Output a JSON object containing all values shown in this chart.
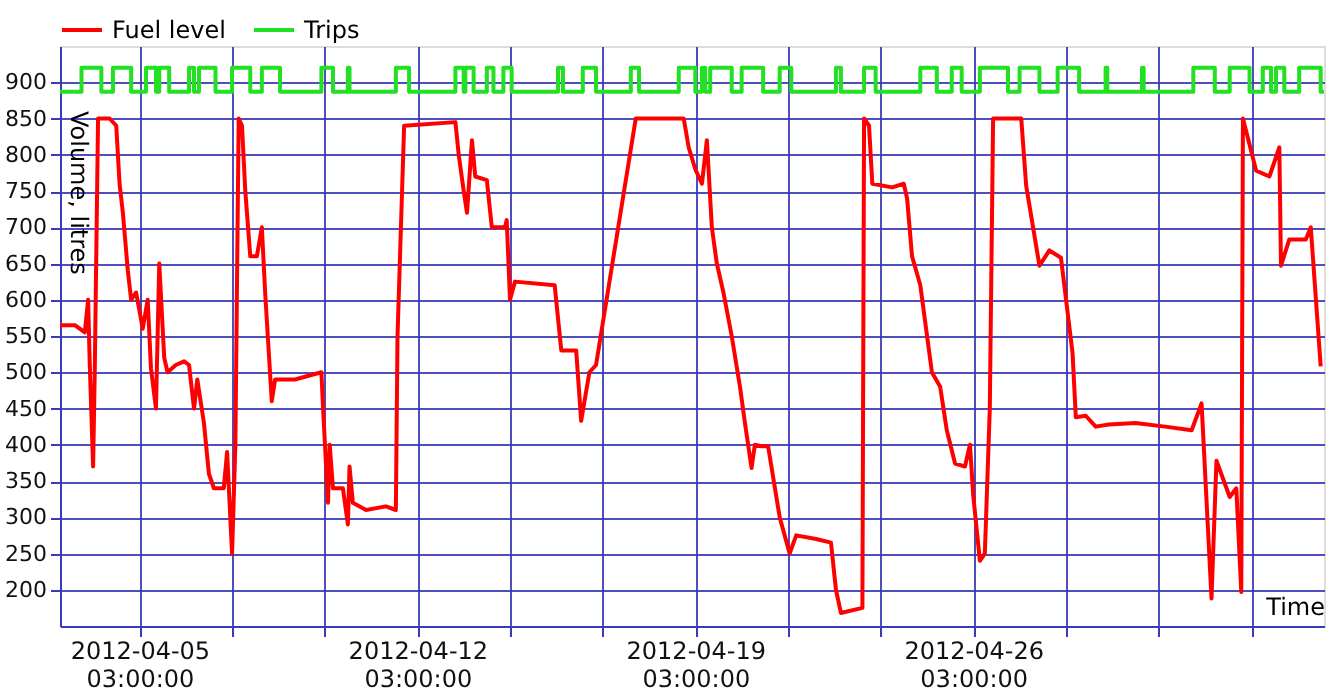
{
  "chart_data": {
    "type": "line",
    "xlabel": "Time",
    "ylabel": "Volume, litres",
    "legend": "top",
    "grid": true,
    "xlim": [
      "2012-04-03T03:00",
      "2012-05-04T23:00"
    ],
    "ylim": [
      150,
      950
    ],
    "yticks": [
      200,
      250,
      300,
      350,
      400,
      450,
      500,
      550,
      600,
      650,
      700,
      750,
      800,
      850,
      900
    ],
    "xticks": [
      {
        "value": "2012-04-05T03:00",
        "label": "2012-04-05 03:00:00"
      },
      {
        "value": "2012-04-07T11:00",
        "label": null
      },
      {
        "value": "2012-04-09T19:00",
        "label": null
      },
      {
        "value": "2012-04-12T03:00",
        "label": "2012-04-12 03:00:00"
      },
      {
        "value": "2012-04-14T11:00",
        "label": null
      },
      {
        "value": "2012-04-16T19:00",
        "label": null
      },
      {
        "value": "2012-04-19T03:00",
        "label": "2012-04-19 03:00:00"
      },
      {
        "value": "2012-04-21T11:00",
        "label": null
      },
      {
        "value": "2012-04-23T19:00",
        "label": null
      },
      {
        "value": "2012-04-26T03:00",
        "label": "2012-04-26 03:00:00"
      },
      {
        "value": "2012-04-28T11:00",
        "label": null
      },
      {
        "value": "2012-04-30T19:00",
        "label": null
      },
      {
        "value": "2012-05-03T03:00",
        "label": null
      }
    ],
    "series": [
      {
        "name": "Fuel level",
        "color": "#ff0000",
        "type": "line",
        "x": [
          "2012-04-03T03:00",
          "2012-04-03T12:00",
          "2012-04-03T18:00",
          "2012-04-03T20:00",
          "2012-04-03T21:00",
          "2012-04-03T23:00",
          "2012-04-04T00:00",
          "2012-04-04T02:00",
          "2012-04-04T09:00",
          "2012-04-04T13:00",
          "2012-04-04T15:00",
          "2012-04-04T17:00",
          "2012-04-04T20:00",
          "2012-04-04T22:00",
          "2012-04-05T01:00",
          "2012-04-05T05:00",
          "2012-04-05T08:00",
          "2012-04-05T10:00",
          "2012-04-05T13:00",
          "2012-04-05T15:00",
          "2012-04-05T18:00",
          "2012-04-05T20:00",
          "2012-04-06T01:00",
          "2012-04-06T06:00",
          "2012-04-06T09:00",
          "2012-04-06T12:00",
          "2012-04-06T14:00",
          "2012-04-06T18:00",
          "2012-04-06T21:00",
          "2012-04-07T00:00",
          "2012-04-07T06:00",
          "2012-04-07T08:00",
          "2012-04-07T11:00",
          "2012-04-07T13:00",
          "2012-04-07T15:00",
          "2012-04-07T17:00",
          "2012-04-07T19:00",
          "2012-04-07T22:00",
          "2012-04-08T02:00",
          "2012-04-08T05:00",
          "2012-04-08T07:00",
          "2012-04-08T11:00",
          "2012-04-08T13:00",
          "2012-04-09T01:00",
          "2012-04-09T17:00",
          "2012-04-09T18:00",
          "2012-04-09T21:00",
          "2012-04-09T22:00",
          "2012-04-10T00:00",
          "2012-04-10T06:00",
          "2012-04-10T09:00",
          "2012-04-10T10:00",
          "2012-04-10T12:00",
          "2012-04-10T20:00",
          "2012-04-11T08:00",
          "2012-04-11T14:00",
          "2012-04-11T15:00",
          "2012-04-11T19:00",
          "2012-04-13T02:00",
          "2012-04-13T04:00",
          "2012-04-13T07:00",
          "2012-04-13T09:00",
          "2012-04-13T12:00",
          "2012-04-13T14:00",
          "2012-04-13T21:00",
          "2012-04-14T00:00",
          "2012-04-14T08:00",
          "2012-04-14T09:00",
          "2012-04-14T11:00",
          "2012-04-14T14:00",
          "2012-04-15T14:00",
          "2012-04-15T18:00",
          "2012-04-16T03:00",
          "2012-04-16T06:00",
          "2012-04-16T11:00",
          "2012-04-16T15:00",
          "2012-04-17T15:00",
          "2012-04-18T15:00",
          "2012-04-18T20:00",
          "2012-04-18T23:00",
          "2012-04-19T03:00",
          "2012-04-19T07:00",
          "2012-04-19T10:00",
          "2012-04-19T13:00",
          "2012-04-19T16:00",
          "2012-04-19T20:00",
          "2012-04-20T01:00",
          "2012-04-20T06:00",
          "2012-04-20T09:00",
          "2012-04-20T13:00",
          "2012-04-20T15:00",
          "2012-04-20T19:00",
          "2012-04-20T23:00",
          "2012-04-21T06:00",
          "2012-04-21T12:00",
          "2012-04-21T16:00",
          "2012-04-22T04:00",
          "2012-04-22T13:00",
          "2012-04-22T16:00",
          "2012-04-22T19:00",
          "2012-04-23T08:00",
          "2012-04-23T09:00",
          "2012-04-23T12:00",
          "2012-04-23T14:00",
          "2012-04-24T02:00",
          "2012-04-24T09:00",
          "2012-04-24T11:00",
          "2012-04-24T14:00",
          "2012-04-24T19:00",
          "2012-04-25T02:00",
          "2012-04-25T07:00",
          "2012-04-25T11:00",
          "2012-04-25T16:00",
          "2012-04-25T22:00",
          "2012-04-26T01:00",
          "2012-04-26T03:00",
          "2012-04-26T07:00",
          "2012-04-26T10:00",
          "2012-04-26T13:00",
          "2012-04-26T15:00",
          "2012-04-27T08:00",
          "2012-04-27T11:00",
          "2012-04-27T19:00",
          "2012-04-28T01:00",
          "2012-04-28T08:00",
          "2012-04-28T15:00",
          "2012-04-28T17:00",
          "2012-04-28T23:00",
          "2012-04-29T05:00",
          "2012-04-29T13:00",
          "2012-04-30T05:00",
          "2012-04-30T23:00",
          "2012-05-01T15:00",
          "2012-05-01T21:00",
          "2012-05-02T03:00",
          "2012-05-02T06:00",
          "2012-05-02T14:00",
          "2012-05-02T18:00",
          "2012-05-02T21:00",
          "2012-05-02T22:00",
          "2012-05-03T06:00",
          "2012-05-03T14:00",
          "2012-05-03T20:00",
          "2012-05-03T21:00",
          "2012-05-04T02:00",
          "2012-05-04T12:00",
          "2012-05-04T15:00",
          "2012-05-04T21:00"
        ],
        "values": [
          565,
          565,
          555,
          600,
          510,
          370,
          500,
          850,
          850,
          840,
          760,
          720,
          640,
          600,
          610,
          560,
          600,
          505,
          450,
          650,
          520,
          500,
          510,
          515,
          510,
          450,
          490,
          430,
          360,
          340,
          340,
          390,
          250,
          400,
          850,
          840,
          750,
          660,
          660,
          700,
          610,
          460,
          490,
          490,
          500,
          450,
          320,
          400,
          340,
          340,
          290,
          370,
          320,
          310,
          315,
          310,
          550,
          840,
          845,
          800,
          750,
          720,
          820,
          770,
          765,
          700,
          700,
          710,
          600,
          625,
          620,
          530,
          530,
          433,
          500,
          510,
          850,
          850,
          850,
          810,
          780,
          760,
          820,
          700,
          650,
          610,
          550,
          480,
          430,
          368,
          400,
          398,
          398,
          300,
          250,
          275,
          270,
          265,
          200,
          168,
          175,
          850,
          840,
          760,
          755,
          760,
          740,
          660,
          620,
          500,
          480,
          420,
          374,
          370,
          400,
          330,
          240,
          250,
          450,
          850,
          850,
          757,
          647,
          668,
          658,
          527,
          438,
          440,
          425,
          428,
          430,
          425,
          420,
          457,
          188,
          378,
          328,
          340,
          197,
          850,
          778,
          770,
          810,
          647,
          683,
          683,
          700,
          508
        ]
      },
      {
        "name": "Trips",
        "color": "#22e022",
        "type": "step",
        "x": [
          "2012-04-03T03:00",
          "2012-04-03T16:00",
          "2012-04-04T04:00",
          "2012-04-04T11:00",
          "2012-04-04T22:00",
          "2012-04-05T07:00",
          "2012-04-05T13:00",
          "2012-04-05T15:00",
          "2012-04-05T21:00",
          "2012-04-06T09:00",
          "2012-04-06T12:00",
          "2012-04-06T15:00",
          "2012-04-07T01:00",
          "2012-04-07T11:00",
          "2012-04-07T22:00",
          "2012-04-08T05:00",
          "2012-04-08T16:00",
          "2012-04-09T17:00",
          "2012-04-10T00:00",
          "2012-04-10T09:00",
          "2012-04-10T10:00",
          "2012-04-11T14:00",
          "2012-04-11T22:00",
          "2012-04-13T02:00",
          "2012-04-13T07:00",
          "2012-04-13T08:00",
          "2012-04-13T13:00",
          "2012-04-13T21:00",
          "2012-04-14T01:00",
          "2012-04-14T07:00",
          "2012-04-14T12:00",
          "2012-04-15T16:00",
          "2012-04-15T19:00",
          "2012-04-16T07:00",
          "2012-04-16T15:00",
          "2012-04-17T12:00",
          "2012-04-17T17:00",
          "2012-04-18T17:00",
          "2012-04-19T03:00",
          "2012-04-19T07:00",
          "2012-04-19T09:00",
          "2012-04-19T12:00",
          "2012-04-20T01:00",
          "2012-04-20T07:00",
          "2012-04-20T20:00",
          "2012-04-21T06:00",
          "2012-04-21T13:00",
          "2012-04-22T16:00",
          "2012-04-22T19:00",
          "2012-04-23T09:00",
          "2012-04-23T16:00",
          "2012-04-24T19:00",
          "2012-04-25T05:00",
          "2012-04-25T14:00",
          "2012-04-25T20:00",
          "2012-04-26T07:00",
          "2012-04-27T00:00",
          "2012-04-27T07:00",
          "2012-04-27T19:00",
          "2012-04-28T06:00",
          "2012-04-28T19:00",
          "2012-04-29T11:00",
          "2012-04-29T12:00",
          "2012-04-30T09:00",
          "2012-04-30T10:00",
          "2012-05-01T16:00",
          "2012-05-02T05:00",
          "2012-05-02T14:00",
          "2012-05-03T02:00",
          "2012-05-03T10:00",
          "2012-05-03T15:00",
          "2012-05-03T18:00",
          "2012-05-03T23:00",
          "2012-05-04T08:00",
          "2012-05-04T21:00",
          "2012-05-04T23:00"
        ],
        "values": [
          887,
          920,
          887,
          920,
          887,
          920,
          887,
          920,
          887,
          920,
          887,
          920,
          887,
          920,
          887,
          920,
          887,
          920,
          887,
          920,
          887,
          920,
          887,
          920,
          887,
          920,
          887,
          920,
          887,
          920,
          887,
          920,
          887,
          920,
          887,
          920,
          887,
          920,
          887,
          920,
          887,
          920,
          887,
          920,
          887,
          920,
          887,
          920,
          887,
          920,
          887,
          920,
          887,
          920,
          887,
          920,
          887,
          920,
          887,
          920,
          887,
          920,
          887,
          920,
          887,
          920,
          887,
          920,
          887,
          920,
          887,
          920,
          887,
          920,
          887,
          887
        ]
      }
    ]
  }
}
